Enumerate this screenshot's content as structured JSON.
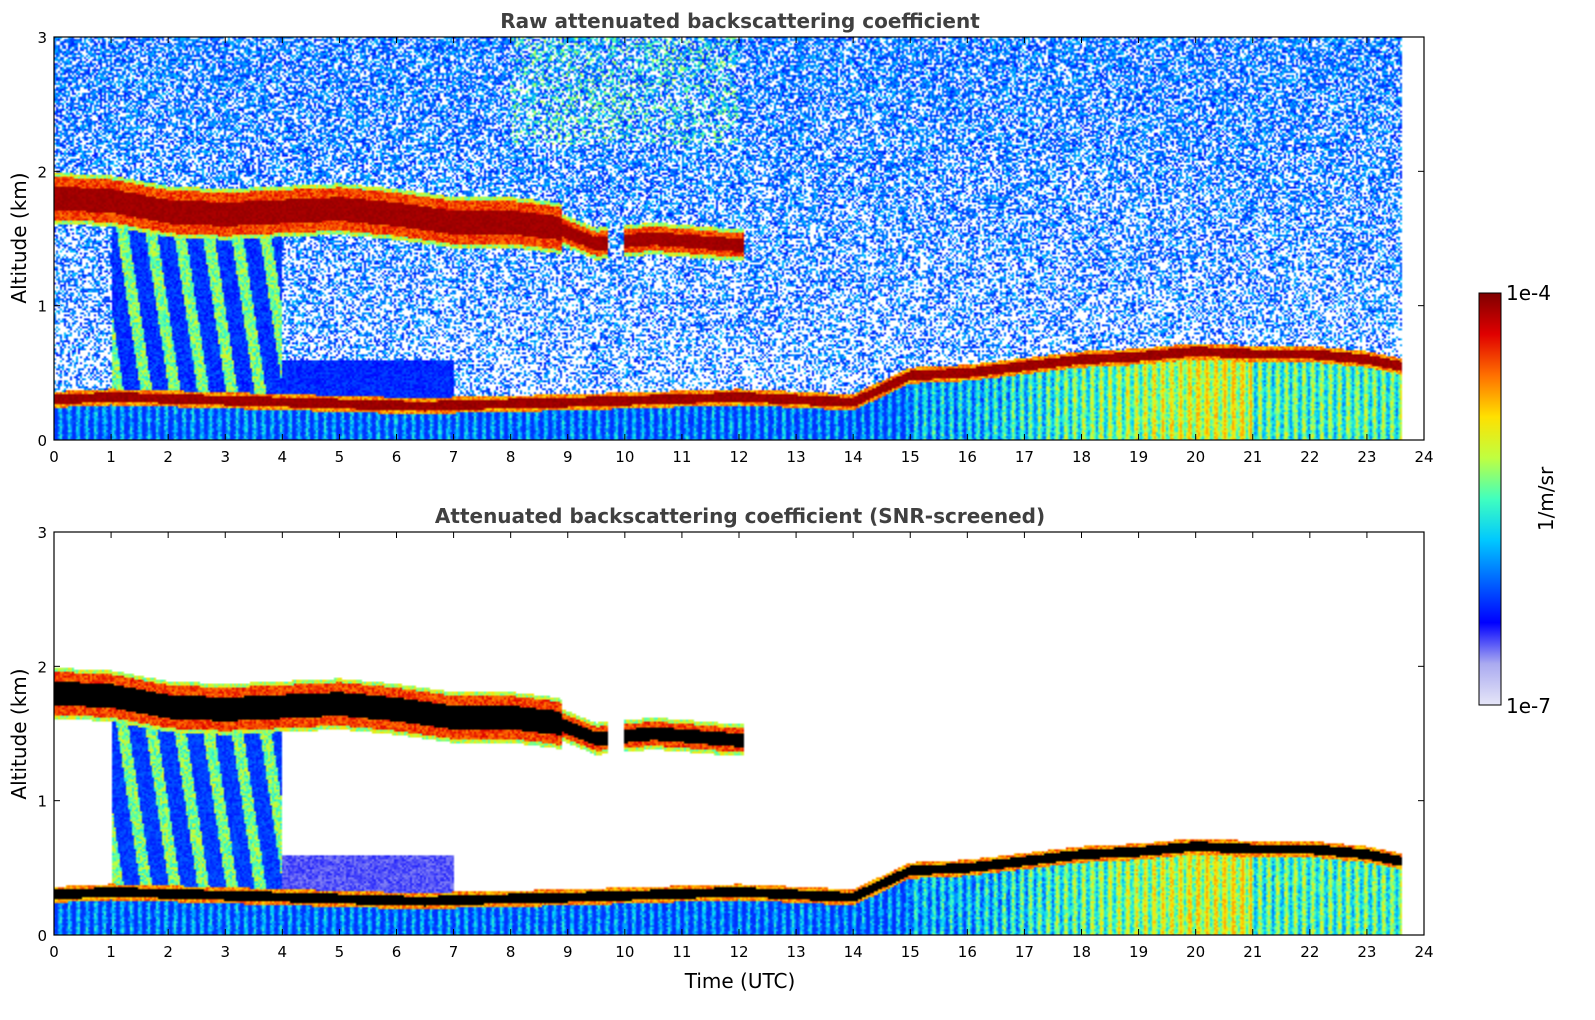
{
  "chart_data": [
    {
      "type": "heatmap",
      "title": "Raw attenuated backscattering coefficient",
      "xlabel": "",
      "ylabel": "Altitude (km)",
      "xlim": [
        0,
        24
      ],
      "ylim": [
        0,
        3
      ],
      "xticks": [
        "0",
        "1",
        "2",
        "3",
        "4",
        "5",
        "6",
        "7",
        "8",
        "9",
        "10",
        "11",
        "12",
        "13",
        "14",
        "15",
        "16",
        "17",
        "18",
        "19",
        "20",
        "21",
        "22",
        "23",
        "24"
      ],
      "yticks": [
        "0",
        "1",
        "2",
        "3"
      ],
      "data_end_hour": 23.6,
      "screened": false,
      "features": {
        "elevated_cloud_layer": [
          {
            "t": 0.0,
            "alt": 1.8
          },
          {
            "t": 1.0,
            "alt": 1.78
          },
          {
            "t": 2.0,
            "alt": 1.7
          },
          {
            "t": 3.0,
            "alt": 1.68
          },
          {
            "t": 4.0,
            "alt": 1.7
          },
          {
            "t": 5.0,
            "alt": 1.72
          },
          {
            "t": 6.0,
            "alt": 1.68
          },
          {
            "t": 7.0,
            "alt": 1.62
          },
          {
            "t": 8.0,
            "alt": 1.62
          },
          {
            "t": 8.8,
            "alt": 1.58
          },
          {
            "t": 9.5,
            "alt": 1.46
          },
          {
            "t": 10.5,
            "alt": 1.5
          },
          {
            "t": 12.0,
            "alt": 1.45
          }
        ],
        "boundary_layer_top": [
          {
            "t": 0.0,
            "alt": 0.3
          },
          {
            "t": 1.0,
            "alt": 0.32
          },
          {
            "t": 6.5,
            "alt": 0.25
          },
          {
            "t": 7.0,
            "alt": 0.26
          },
          {
            "t": 9.0,
            "alt": 0.28
          },
          {
            "t": 12.0,
            "alt": 0.32
          },
          {
            "t": 14.0,
            "alt": 0.28
          },
          {
            "t": 15.0,
            "alt": 0.48
          },
          {
            "t": 16.0,
            "alt": 0.5
          },
          {
            "t": 17.0,
            "alt": 0.55
          },
          {
            "t": 18.0,
            "alt": 0.6
          },
          {
            "t": 19.0,
            "alt": 0.62
          },
          {
            "t": 20.0,
            "alt": 0.66
          },
          {
            "t": 21.0,
            "alt": 0.64
          },
          {
            "t": 22.0,
            "alt": 0.64
          },
          {
            "t": 23.0,
            "alt": 0.6
          },
          {
            "t": 23.6,
            "alt": 0.55
          }
        ],
        "fallstreaks_hours": [
          1.0,
          4.0
        ]
      }
    },
    {
      "type": "heatmap",
      "title": "Attenuated backscattering coefficient (SNR-screened)",
      "xlabel": "Time (UTC)",
      "ylabel": "Altitude (km)",
      "xlim": [
        0,
        24
      ],
      "ylim": [
        0,
        3
      ],
      "xticks": [
        "0",
        "1",
        "2",
        "3",
        "4",
        "5",
        "6",
        "7",
        "8",
        "9",
        "10",
        "11",
        "12",
        "13",
        "14",
        "15",
        "16",
        "17",
        "18",
        "19",
        "20",
        "21",
        "22",
        "23",
        "24"
      ],
      "yticks": [
        "0",
        "1",
        "2",
        "3"
      ],
      "data_end_hour": 23.6,
      "screened": true
    }
  ],
  "colorbar": {
    "label": "1/m/sr",
    "max_label": "1e-4",
    "min_label": "1e-7",
    "colors": [
      "#e6e6f8",
      "#aaaaf0",
      "#0000ff",
      "#0064ff",
      "#00c8ff",
      "#40ffbf",
      "#c0ff40",
      "#ffe000",
      "#ff7000",
      "#e00000",
      "#7f0000"
    ]
  }
}
